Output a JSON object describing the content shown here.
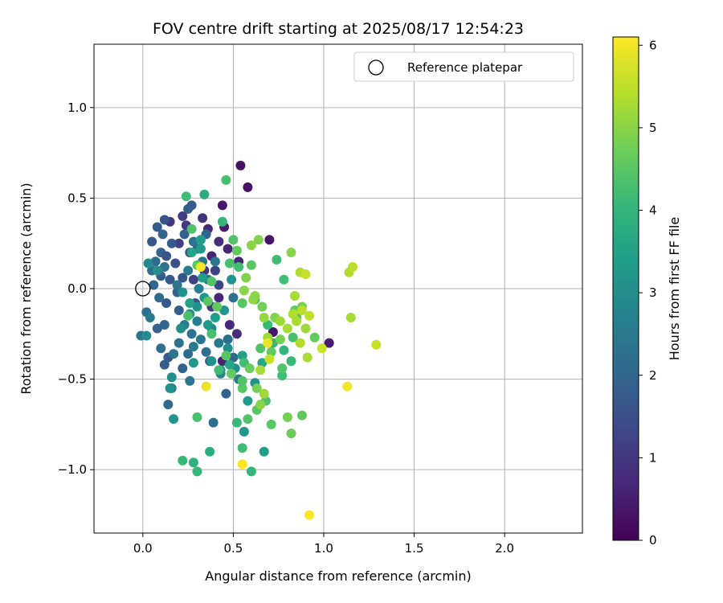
{
  "chart_data": {
    "type": "scatter",
    "title": "FOV centre drift starting at 2025/08/17 12:54:23",
    "xlabel": "Angular distance from reference (arcmin)",
    "ylabel": "Rotation from reference (arcmin)",
    "xlim": [
      -0.27,
      2.43
    ],
    "ylim": [
      -1.35,
      1.35
    ],
    "xticks": [
      0.0,
      0.5,
      1.0,
      1.5,
      2.0
    ],
    "xtick_labels": [
      "0.0",
      "0.5",
      "1.0",
      "1.5",
      "2.0"
    ],
    "yticks": [
      -1.0,
      -0.5,
      0.0,
      0.5,
      1.0
    ],
    "ytick_labels": [
      "−1.0",
      "−0.5",
      "0.0",
      "0.5",
      "1.0"
    ],
    "grid": true,
    "legend": {
      "position": "top-right",
      "entries": [
        "Reference platepar"
      ]
    },
    "reference_point": {
      "x": 0.0,
      "y": 0.0,
      "label": "Reference platepar",
      "marker": "open-circle"
    },
    "colorbar": {
      "label": "Hours from first FF file",
      "range": [
        0,
        6.1
      ],
      "ticks": [
        0,
        1,
        2,
        3,
        4,
        5,
        6
      ],
      "colormap": "viridis",
      "stops": [
        "#440154",
        "#482878",
        "#3e4989",
        "#31688e",
        "#26828e",
        "#1f9e89",
        "#35b779",
        "#6ece58",
        "#b5de2b",
        "#fde725"
      ]
    },
    "series": [
      {
        "points": [
          [
            0.54,
            0.68,
            0.3
          ],
          [
            0.58,
            0.56,
            0.3
          ],
          [
            0.44,
            0.46,
            0.4
          ],
          [
            0.7,
            0.27,
            0.4
          ],
          [
            0.45,
            0.34,
            0.5
          ],
          [
            0.38,
            0.18,
            0.6
          ],
          [
            0.42,
            0.26,
            0.8
          ],
          [
            0.47,
            0.22,
            0.6
          ],
          [
            0.53,
            0.15,
            0.6
          ],
          [
            0.36,
            0.33,
            0.7
          ],
          [
            0.33,
            0.39,
            0.9
          ],
          [
            0.24,
            0.35,
            1.0
          ],
          [
            0.22,
            0.4,
            1.1
          ],
          [
            0.2,
            0.25,
            1.2
          ],
          [
            0.15,
            0.37,
            1.0
          ],
          [
            0.34,
            0.1,
            0.9
          ],
          [
            0.42,
            -0.05,
            0.7
          ],
          [
            0.48,
            -0.2,
            0.7
          ],
          [
            0.52,
            -0.25,
            0.8
          ],
          [
            0.44,
            -0.4,
            0.6
          ],
          [
            0.72,
            -0.24,
            0.4
          ],
          [
            1.03,
            -0.3,
            0.5
          ],
          [
            0.42,
            0.02,
            1.3
          ],
          [
            0.4,
            0.1,
            1.2
          ],
          [
            0.38,
            -0.1,
            1.0
          ],
          [
            0.28,
            0.05,
            1.2
          ],
          [
            0.26,
            0.2,
            1.4
          ],
          [
            0.29,
            -0.08,
            1.4
          ],
          [
            0.12,
            0.38,
            1.6
          ],
          [
            0.08,
            0.34,
            1.8
          ],
          [
            0.11,
            0.3,
            2.0
          ],
          [
            0.05,
            0.26,
            1.7
          ],
          [
            0.16,
            0.25,
            1.8
          ],
          [
            0.27,
            0.46,
            1.7
          ],
          [
            0.23,
            0.3,
            1.9
          ],
          [
            0.25,
            0.44,
            1.8
          ],
          [
            0.07,
            0.15,
            2.1
          ],
          [
            0.1,
            0.2,
            1.9
          ],
          [
            0.13,
            0.18,
            1.6
          ],
          [
            0.18,
            0.14,
            1.5
          ],
          [
            0.22,
            0.06,
            1.6
          ],
          [
            0.15,
            0.05,
            1.7
          ],
          [
            0.1,
            0.07,
            1.8
          ],
          [
            0.06,
            0.02,
            2.0
          ],
          [
            0.09,
            -0.05,
            2.1
          ],
          [
            0.13,
            -0.08,
            1.7
          ],
          [
            0.19,
            -0.02,
            1.9
          ],
          [
            0.2,
            -0.12,
            1.8
          ],
          [
            0.12,
            -0.2,
            2.0
          ],
          [
            0.08,
            -0.22,
            1.9
          ],
          [
            0.1,
            -0.33,
            2.2
          ],
          [
            0.14,
            -0.38,
            1.7
          ],
          [
            0.12,
            -0.42,
            1.8
          ],
          [
            0.17,
            -0.36,
            2.4
          ],
          [
            0.2,
            -0.3,
            2.3
          ],
          [
            0.22,
            -0.44,
            1.9
          ],
          [
            0.25,
            -0.36,
            2.1
          ],
          [
            0.28,
            -0.32,
            2.5
          ],
          [
            0.23,
            -0.2,
            2.6
          ],
          [
            0.27,
            -0.25,
            2.3
          ],
          [
            0.3,
            -0.18,
            2.6
          ],
          [
            0.32,
            -0.28,
            2.4
          ],
          [
            0.35,
            -0.35,
            2.2
          ],
          [
            0.37,
            -0.4,
            2.0
          ],
          [
            0.38,
            -0.22,
            2.7
          ],
          [
            0.42,
            -0.3,
            2.5
          ],
          [
            0.35,
            0.3,
            2.0
          ],
          [
            0.3,
            0.22,
            2.1
          ],
          [
            0.33,
            0.15,
            2.3
          ],
          [
            0.36,
            0.05,
            2.2
          ],
          [
            0.4,
            0.15,
            2.4
          ],
          [
            0.5,
            -0.05,
            2.3
          ],
          [
            0.47,
            -0.28,
            2.2
          ],
          [
            0.5,
            -0.38,
            2.0
          ],
          [
            0.46,
            -0.58,
            1.9
          ],
          [
            0.53,
            -0.5,
            2.4
          ],
          [
            0.14,
            -0.64,
            2.1
          ],
          [
            0.39,
            -0.74,
            2.2
          ],
          [
            0.26,
            -0.51,
            2.3
          ],
          [
            -0.01,
            -0.26,
            2.4
          ],
          [
            0.02,
            -0.13,
            2.2
          ],
          [
            0.04,
            -0.16,
            2.5
          ],
          [
            0.16,
            -0.55,
            2.6
          ],
          [
            0.05,
            0.1,
            2.2
          ],
          [
            0.25,
            0.1,
            2.5
          ],
          [
            0.31,
            0.0,
            2.6
          ],
          [
            0.19,
            0.02,
            2.4
          ],
          [
            0.43,
            -0.47,
            2.8
          ],
          [
            0.12,
            0.12,
            2.3
          ],
          [
            0.28,
            0.26,
            2.3
          ],
          [
            0.02,
            -0.26,
            2.9
          ],
          [
            0.03,
            0.14,
            2.9
          ],
          [
            0.08,
            0.1,
            3.0
          ],
          [
            0.15,
            -0.55,
            3.1
          ],
          [
            0.16,
            -0.49,
            3.0
          ],
          [
            0.17,
            -0.72,
            3.2
          ],
          [
            0.21,
            -0.22,
            3.0
          ],
          [
            0.22,
            -0.02,
            3.1
          ],
          [
            0.26,
            -0.14,
            3.0
          ],
          [
            0.28,
            -0.41,
            3.2
          ],
          [
            0.3,
            -0.1,
            3.1
          ],
          [
            0.32,
            0.27,
            3.4
          ],
          [
            0.34,
            -0.05,
            3.2
          ],
          [
            0.36,
            -0.2,
            3.3
          ],
          [
            0.38,
            -0.4,
            3.1
          ],
          [
            0.4,
            -0.16,
            3.4
          ],
          [
            0.43,
            -0.45,
            3.3
          ],
          [
            0.45,
            -0.12,
            3.2
          ],
          [
            0.47,
            -0.33,
            3.0
          ],
          [
            0.49,
            0.05,
            3.1
          ],
          [
            0.51,
            -0.44,
            3.0
          ],
          [
            0.55,
            -0.37,
            3.5
          ],
          [
            0.56,
            -0.79,
            3.2
          ],
          [
            0.58,
            -0.62,
            3.3
          ],
          [
            0.62,
            -0.52,
            3.1
          ],
          [
            0.66,
            -0.41,
            3.6
          ],
          [
            0.67,
            -0.9,
            3.4
          ],
          [
            0.33,
            0.06,
            3.4
          ],
          [
            0.26,
            -0.08,
            3.5
          ],
          [
            0.32,
            0.22,
            3.3
          ],
          [
            0.48,
            -0.42,
            3.6
          ],
          [
            0.27,
            0.2,
            3.6
          ],
          [
            0.37,
            -0.9,
            3.8
          ],
          [
            0.28,
            -0.96,
            3.9
          ],
          [
            0.3,
            -1.01,
            4.0
          ],
          [
            0.22,
            -0.95,
            4.1
          ],
          [
            0.24,
            0.51,
            4.2
          ],
          [
            0.34,
            0.52,
            3.8
          ],
          [
            0.44,
            0.37,
            4.0
          ],
          [
            0.46,
            0.6,
            4.3
          ],
          [
            0.3,
            -0.71,
            4.3
          ],
          [
            0.55,
            -0.88,
            4.2
          ],
          [
            0.6,
            -1.01,
            4.0
          ],
          [
            0.52,
            -0.74,
            4.1
          ],
          [
            0.58,
            -0.72,
            4.4
          ],
          [
            0.63,
            -0.67,
            4.5
          ],
          [
            0.71,
            -0.75,
            4.5
          ],
          [
            0.78,
            -0.34,
            4.0
          ],
          [
            0.77,
            -0.48,
            4.2
          ],
          [
            0.82,
            -0.4,
            4.1
          ],
          [
            0.83,
            -0.27,
            4.3
          ],
          [
            0.78,
            0.05,
            4.2
          ],
          [
            0.85,
            -0.16,
            4.4
          ],
          [
            0.77,
            -0.44,
            4.4
          ],
          [
            0.72,
            -0.3,
            4.0
          ],
          [
            0.69,
            -0.2,
            4.1
          ],
          [
            0.65,
            -0.33,
            4.4
          ],
          [
            0.56,
            -0.41,
            4.2
          ],
          [
            0.62,
            -0.06,
            4.3
          ],
          [
            0.6,
            0.13,
            4.5
          ],
          [
            0.55,
            -0.08,
            4.5
          ],
          [
            0.5,
            0.27,
            4.4
          ],
          [
            0.48,
            0.14,
            4.3
          ],
          [
            0.46,
            -0.37,
            4.5
          ],
          [
            0.42,
            -0.45,
            4.2
          ],
          [
            0.38,
            0.04,
            4.4
          ],
          [
            0.38,
            -0.25,
            4.3
          ],
          [
            0.41,
            -0.1,
            4.6
          ],
          [
            0.36,
            -0.07,
            4.5
          ],
          [
            0.3,
            0.13,
            4.5
          ],
          [
            0.25,
            -0.15,
            4.3
          ],
          [
            0.27,
            0.33,
            4.4
          ],
          [
            0.52,
            0.21,
            4.6
          ],
          [
            0.53,
            0.12,
            4.2
          ],
          [
            0.84,
            -0.12,
            4.6
          ],
          [
            0.74,
            0.16,
            4.2
          ],
          [
            0.71,
            -0.35,
            4.6
          ],
          [
            0.55,
            -0.55,
            4.5
          ],
          [
            0.49,
            -0.47,
            4.6
          ],
          [
            0.59,
            -0.44,
            4.7
          ],
          [
            0.55,
            -0.51,
            4.4
          ],
          [
            0.68,
            -0.62,
            4.4
          ],
          [
            0.63,
            -0.55,
            4.8
          ],
          [
            0.76,
            -0.28,
            4.8
          ],
          [
            0.8,
            -0.71,
            4.8
          ],
          [
            0.88,
            -0.7,
            4.6
          ],
          [
            0.82,
            -0.8,
            4.7
          ],
          [
            0.95,
            -0.27,
            4.6
          ],
          [
            0.88,
            -0.1,
            4.8
          ],
          [
            0.73,
            -0.16,
            4.9
          ],
          [
            0.66,
            -0.1,
            4.8
          ],
          [
            0.64,
            0.27,
            4.9
          ],
          [
            0.6,
            0.24,
            5.0
          ],
          [
            0.57,
            0.06,
            4.9
          ],
          [
            0.61,
            -0.06,
            5.1
          ],
          [
            0.56,
            -0.01,
            5.0
          ],
          [
            0.62,
            -0.04,
            5.0
          ],
          [
            0.67,
            -0.16,
            5.1
          ],
          [
            0.69,
            -0.27,
            5.2
          ],
          [
            0.65,
            -0.45,
            5.3
          ],
          [
            0.67,
            -0.58,
            5.2
          ],
          [
            0.65,
            -0.64,
            5.0
          ],
          [
            0.82,
            0.2,
            5.0
          ],
          [
            0.76,
            -0.18,
            5.2
          ],
          [
            0.8,
            -0.22,
            5.3
          ],
          [
            0.83,
            -0.14,
            5.4
          ],
          [
            0.85,
            -0.18,
            5.3
          ],
          [
            0.87,
            -0.3,
            5.4
          ],
          [
            0.88,
            -0.12,
            5.5
          ],
          [
            0.9,
            -0.22,
            5.2
          ],
          [
            0.91,
            -0.38,
            5.3
          ],
          [
            0.92,
            -0.15,
            5.5
          ],
          [
            0.87,
            0.09,
            5.4
          ],
          [
            0.9,
            0.08,
            5.6
          ],
          [
            0.84,
            -0.04,
            5.3
          ],
          [
            0.7,
            -0.39,
            5.6
          ],
          [
            0.99,
            -0.33,
            5.6
          ],
          [
            1.14,
            0.09,
            5.4
          ],
          [
            1.16,
            0.12,
            5.5
          ],
          [
            1.15,
            -0.16,
            5.3
          ],
          [
            1.29,
            -0.31,
            5.6
          ],
          [
            0.69,
            -0.3,
            5.9
          ],
          [
            0.55,
            -0.97,
            6.1
          ],
          [
            0.35,
            -0.54,
            5.9
          ],
          [
            0.32,
            0.12,
            6.0
          ],
          [
            1.13,
            -0.54,
            6.0
          ],
          [
            0.92,
            -1.25,
            6.1
          ]
        ]
      }
    ]
  }
}
